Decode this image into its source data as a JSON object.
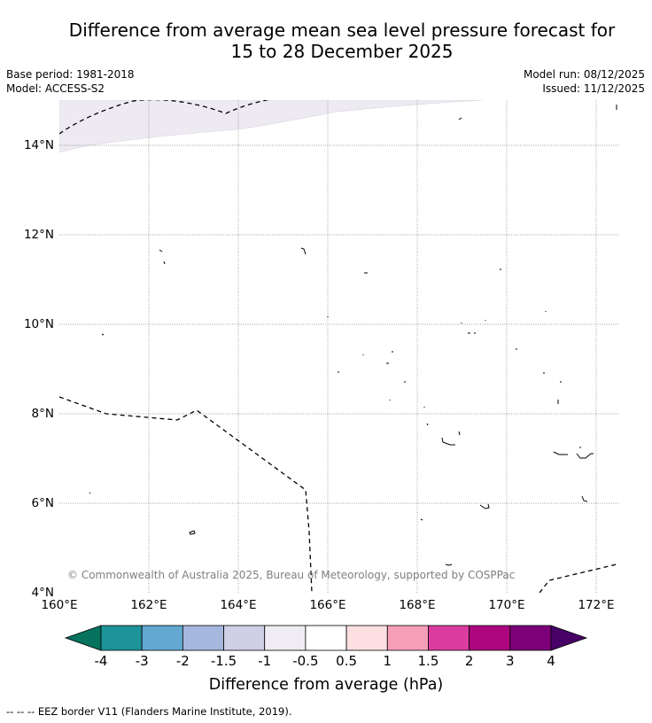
{
  "title": {
    "line1": "Difference from average mean sea level pressure forecast for",
    "line2": "15 to 28 December 2025"
  },
  "meta": {
    "base_period": "Base period: 1981-2018",
    "model": "Model: ACCESS-S2",
    "model_run": "Model run: 08/12/2025",
    "issued": "Issued: 11/12/2025"
  },
  "map": {
    "lon_labels": [
      "160°E",
      "162°E",
      "164°E",
      "166°E",
      "168°E",
      "170°E",
      "172°E"
    ],
    "lat_labels": [
      "4°N",
      "6°N",
      "8°N",
      "10°N",
      "12°N",
      "14°N"
    ],
    "lon_extent_deg_e": [
      160,
      172.5
    ],
    "lat_extent_deg_n": [
      3.9,
      15
    ],
    "copyright": "© Commonwealth of Australia 2025, Bureau of Meteorology, supported by COSPPac",
    "anomaly_band_label": "-1 to -0.5 hPa",
    "anomaly_band_color": "#eeeaf2"
  },
  "legend": {
    "ticks": [
      "-4",
      "-3",
      "-2",
      "-1.5",
      "-1",
      "-0.5",
      "0.5",
      "1",
      "1.5",
      "2",
      "3",
      "4"
    ],
    "colors": [
      "#05735e",
      "#1d9497",
      "#62a8d2",
      "#a5b7dc",
      "#cfcfe6",
      "#f0ecf3",
      "#ffffff",
      "#fedfe1",
      "#f79fb8",
      "#dc3c9f",
      "#ad067e",
      "#7c0178",
      "#480066"
    ],
    "title": "Difference from average (hPa)"
  },
  "footer": {
    "eez_note": "--  --  -- EEZ border V11 (Flanders Marine Institute, 2019)."
  }
}
